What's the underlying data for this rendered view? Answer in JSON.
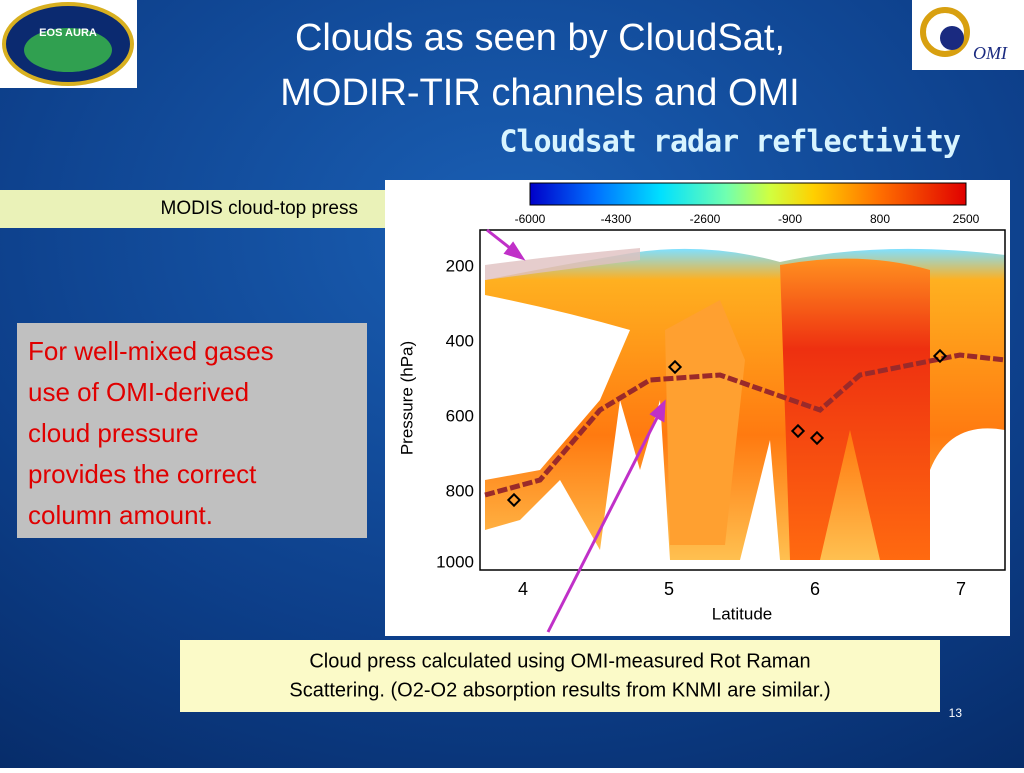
{
  "slide": {
    "title_lines": [
      "Clouds as seen by CloudSat,",
      "MODIR-TIR channels and OMI"
    ],
    "subtitle": "Cloudsat radar reflectivity",
    "modis_label": "MODIS cloud-top press",
    "left_box": [
      "For well-mixed gases",
      "use of OMI-derived",
      "cloud pressure",
      "provides the correct",
      "column amount."
    ],
    "bottom_box": [
      "Cloud press calculated using OMI-measured Rot Raman",
      "Scattering. (O2-O2 absorption results from KNMI are similar.)"
    ],
    "page_number": "13",
    "logo_left": "EOS AURA",
    "logo_right": "OMI",
    "figure": {
      "colorbar_labels": [
        "-6000",
        "-4300",
        "-2600",
        "-900",
        "800",
        "2500"
      ],
      "y_axis_title": "Pressure (hPa)",
      "y_tick_labels": [
        "200",
        "400",
        "600",
        "800",
        "1000"
      ],
      "x_axis_title": "Latitude",
      "x_tick_labels": [
        "4",
        "5",
        "6",
        "7"
      ]
    }
  }
}
